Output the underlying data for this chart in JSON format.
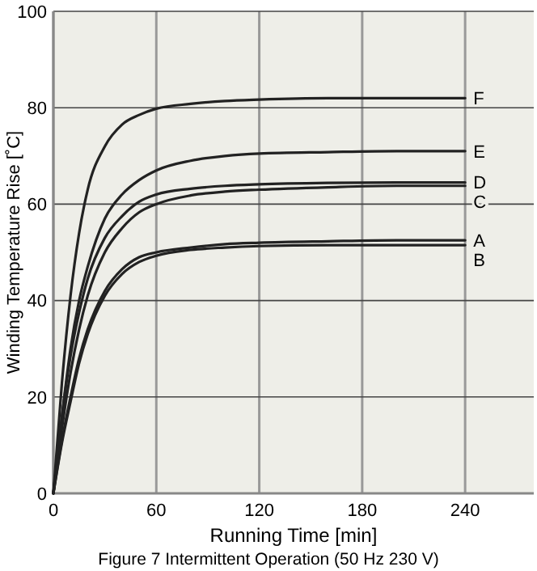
{
  "chart_data": {
    "type": "line",
    "xlabel": "Running Time [min]",
    "ylabel": "Winding Temperature Rise [˚C]",
    "x": [
      0,
      5,
      10,
      15,
      20,
      30,
      40,
      50,
      60,
      80,
      100,
      120,
      160,
      200,
      240
    ],
    "xlim": [
      0,
      280
    ],
    "xticks": [
      0,
      60,
      120,
      180,
      240
    ],
    "ylim": [
      0,
      100
    ],
    "yticks": [
      0,
      20,
      40,
      60,
      80,
      100
    ],
    "grid": true,
    "marker": "none",
    "line_style": "solid",
    "series": [
      {
        "name": "F",
        "color": "#222222",
        "values": [
          0,
          23,
          41,
          54,
          63,
          72,
          76.5,
          78.5,
          79.8,
          80.8,
          81.4,
          81.7,
          82,
          82,
          82
        ]
      },
      {
        "name": "E",
        "color": "#222222",
        "values": [
          0,
          16,
          30,
          40,
          47,
          57,
          62,
          65,
          67,
          69,
          70,
          70.5,
          70.8,
          71,
          71
        ]
      },
      {
        "name": "D",
        "color": "#222222",
        "values": [
          0,
          16,
          28.5,
          37.5,
          44.5,
          53,
          57.5,
          60.5,
          62,
          63.2,
          63.8,
          64.1,
          64.4,
          64.5,
          64.5
        ]
      },
      {
        "name": "C",
        "color": "#222222",
        "values": [
          0,
          13.5,
          25,
          34,
          41,
          50,
          55,
          58.3,
          60,
          61.8,
          62.6,
          63,
          63.5,
          63.8,
          63.8
        ]
      },
      {
        "name": "A",
        "color": "#222222",
        "values": [
          0,
          11,
          20,
          28,
          34,
          42,
          46.5,
          49,
          50,
          51,
          51.7,
          52,
          52.3,
          52.5,
          52.5
        ]
      },
      {
        "name": "B",
        "color": "#222222",
        "values": [
          0,
          10.5,
          19,
          27,
          33,
          41,
          45.5,
          48,
          49.3,
          50.5,
          51,
          51.3,
          51.5,
          51.5,
          51.5
        ]
      }
    ],
    "annotations": [
      "Figure 7  Intermittent Operation (50 Hz 230 V)"
    ]
  }
}
